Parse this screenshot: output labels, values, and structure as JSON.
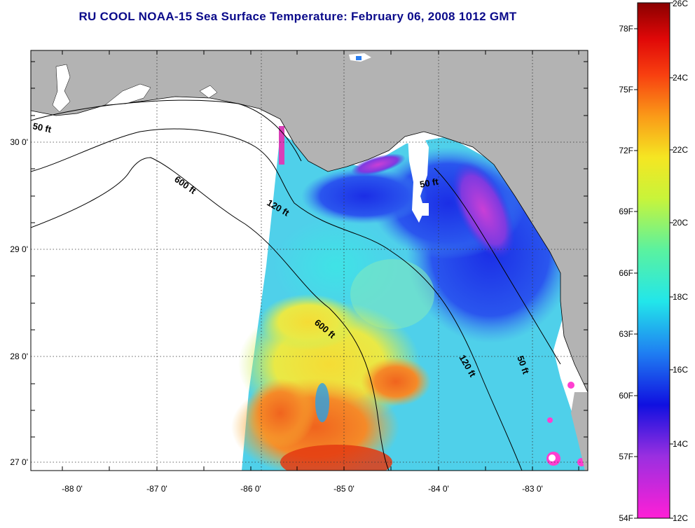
{
  "title": "RU COOL  NOAA-15  Sea Surface Temperature:  February 06, 2008 1012 GMT",
  "axes": {
    "x_ticks": [
      "-88 0'",
      "-87 0'",
      "-86 0'",
      "-85 0'",
      "-84 0'",
      "-83 0'"
    ],
    "y_ticks": [
      "30 0'",
      "29 0'",
      "28 0'",
      "27 0'"
    ]
  },
  "contours": {
    "labels": [
      "50 ft",
      "600 ft",
      "120 ft",
      "50 ft",
      "600 ft",
      "120 ft",
      "50 ft"
    ]
  },
  "colorbar": {
    "celsius": [
      "26C",
      "24C",
      "22C",
      "20C",
      "18C",
      "16C",
      "14C",
      "12C"
    ],
    "fahrenheit": [
      "78F",
      "75F",
      "72F",
      "69F",
      "66F",
      "63F",
      "60F",
      "57F",
      "54F"
    ]
  },
  "colors": {
    "title": "#0a0a8a",
    "land": "#b3b3b3",
    "no_data": "#ffffff"
  }
}
